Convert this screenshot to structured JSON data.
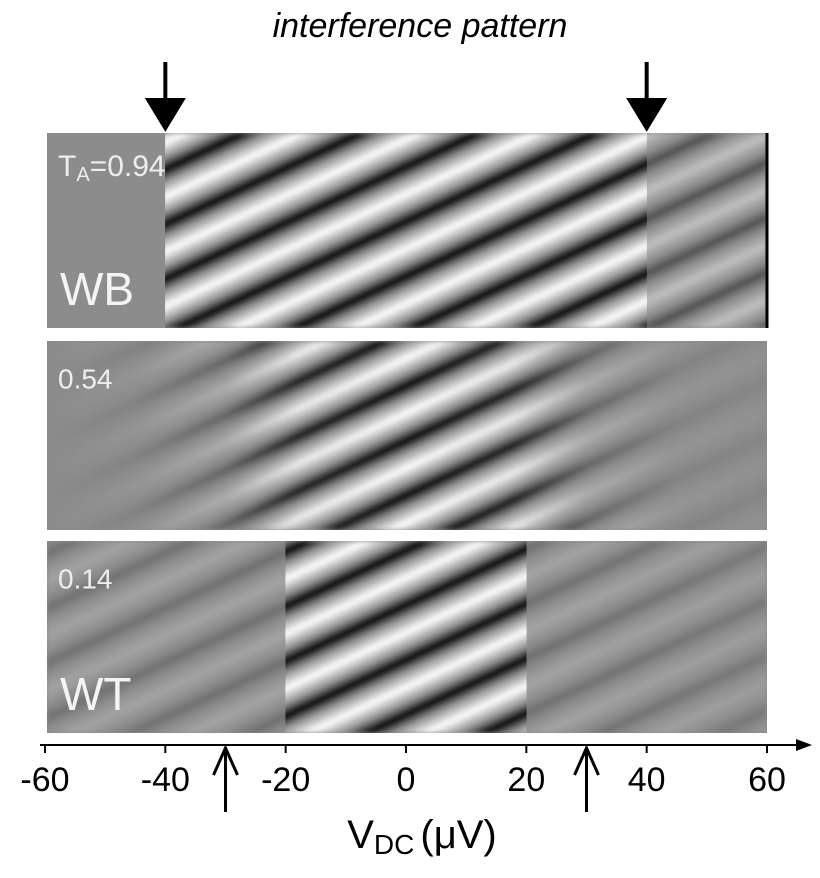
{
  "chart_data": {
    "type": "interference",
    "title": "interference pattern",
    "xlabel": {
      "main": "V",
      "sub": "DC",
      "unit": "(μV)"
    },
    "xlim": [
      -60,
      60
    ],
    "xticks": [
      -60,
      -40,
      -20,
      0,
      20,
      40,
      60
    ],
    "down_arrows": [
      -40,
      40
    ],
    "up_arrows": [
      -30,
      30
    ],
    "panels": [
      {
        "label": {
          "main": "T",
          "sub": "A",
          "rest": "=0.94"
        },
        "tag": "WB"
      },
      {
        "label": "0.54"
      },
      {
        "label": "0.14",
        "tag": "WT"
      }
    ]
  }
}
